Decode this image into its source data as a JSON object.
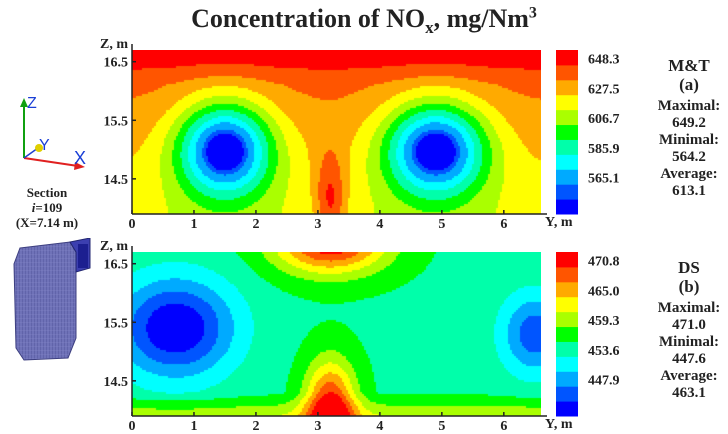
{
  "title_main": "Concentration of NO",
  "title_sub": "x",
  "title_rest": ", mg/Nm",
  "title_sup": "3",
  "section": {
    "line1": "Section",
    "line2_i": "i",
    "line2_rest": "=109",
    "line3": "(X=7.14 m)"
  },
  "triad": {
    "z": "Z",
    "y": "Y",
    "x": "X",
    "colors": {
      "z": "#1a3fd6",
      "y": "#e0cf00",
      "x": "#1a3fd6",
      "z_axis": "#10a010",
      "x_axis": "#e02020"
    }
  },
  "chart_data": [
    {
      "type": "heatmap",
      "title": "M&T",
      "subtitle": "(a)",
      "xlabel": "Y, m",
      "ylabel": "Z, m",
      "xlim": [
        0,
        6.6
      ],
      "ylim": [
        13.9,
        16.7
      ],
      "xticks": [
        "0",
        "1",
        "2",
        "3",
        "4",
        "5",
        "6"
      ],
      "yticks": [
        "14.5",
        "15.5",
        "16.5"
      ],
      "colorbar_labels": [
        "648.3",
        "627.5",
        "606.7",
        "585.9",
        "565.1"
      ],
      "levels": [
        560.0,
        565.1,
        575.5,
        585.9,
        596.3,
        606.7,
        617.1,
        627.5,
        637.9,
        648.3
      ],
      "stats": {
        "max_label": "Maximal:",
        "max": "649.2",
        "min_label": "Minimal:",
        "min": "564.2",
        "avg_label": "Average:",
        "avg": "613.1"
      },
      "field": {
        "base": 646,
        "z_gradient": 28,
        "z_top": 16.7,
        "top_boost": 12,
        "top_boost_start": 16.1,
        "lows": [
          {
            "y": 1.5,
            "z": 15.0,
            "depth": 82,
            "ry": 0.75,
            "rz": 0.8
          },
          {
            "y": 4.9,
            "z": 15.0,
            "depth": 82,
            "ry": 0.8,
            "rz": 0.8
          }
        ],
        "highs": [
          {
            "y": 3.2,
            "z": 14.1,
            "amp": 28,
            "ry": 0.25,
            "rz": 0.85
          }
        ]
      }
    },
    {
      "type": "heatmap",
      "title": "DS",
      "subtitle": "(b)",
      "xlabel": "Y, m",
      "ylabel": "Z, m",
      "xlim": [
        0,
        6.6
      ],
      "ylim": [
        13.9,
        16.7
      ],
      "xticks": [
        "0",
        "1",
        "2",
        "3",
        "4",
        "5",
        "6"
      ],
      "yticks": [
        "14.5",
        "15.5",
        "16.5"
      ],
      "colorbar_labels": [
        "470.8",
        "465.0",
        "459.3",
        "453.6",
        "447.9"
      ],
      "levels": [
        445.0,
        447.9,
        450.75,
        453.6,
        456.45,
        459.3,
        462.15,
        465.0,
        467.9,
        470.8
      ],
      "stats": {
        "max_label": "Maximal:",
        "max": "471.0",
        "min_label": "Minimal:",
        "min": "447.6",
        "avg_label": "Average:",
        "avg": "463.1"
      },
      "field": {
        "base": 456,
        "z_gradient": 0,
        "z_top": 16.7,
        "top_boost": 0,
        "top_boost_start": 16.7,
        "bottom_boost": 6,
        "bottom_boost_end": 14.3,
        "lows": [
          {
            "y": 0.7,
            "z": 15.4,
            "depth": 14,
            "ry": 0.95,
            "rz": 0.85
          },
          {
            "y": 6.5,
            "z": 15.3,
            "depth": 10,
            "ry": 0.55,
            "rz": 0.7
          }
        ],
        "highs": [
          {
            "y": 3.2,
            "z": 14.0,
            "amp": 17,
            "ry": 0.4,
            "rz": 0.8
          },
          {
            "y": 3.2,
            "z": 16.9,
            "amp": 18,
            "ry": 0.9,
            "rz": 0.55
          }
        ]
      }
    }
  ],
  "palette": [
    "#0000ff",
    "#0055ff",
    "#00aaff",
    "#00ffff",
    "#00ffaa",
    "#00ff00",
    "#aaff00",
    "#ffff00",
    "#ffaa00",
    "#ff5500",
    "#ff0000"
  ]
}
